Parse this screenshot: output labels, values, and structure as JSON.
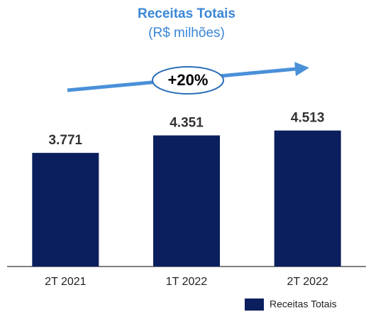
{
  "chart_data": {
    "type": "bar",
    "title": "Receitas Totais",
    "subtitle": "(R$ milhões)",
    "categories": [
      "2T 2021",
      "1T 2022",
      "2T 2022"
    ],
    "series": [
      {
        "name": "Receitas Totais",
        "color": "#0b1f5e",
        "values": [
          3771,
          4351,
          4513
        ],
        "value_labels": [
          "3.771",
          "4.351",
          "4.513"
        ]
      }
    ],
    "ylim": [
      0,
      5000
    ],
    "annotation": "+20%",
    "legend": "lower right"
  }
}
